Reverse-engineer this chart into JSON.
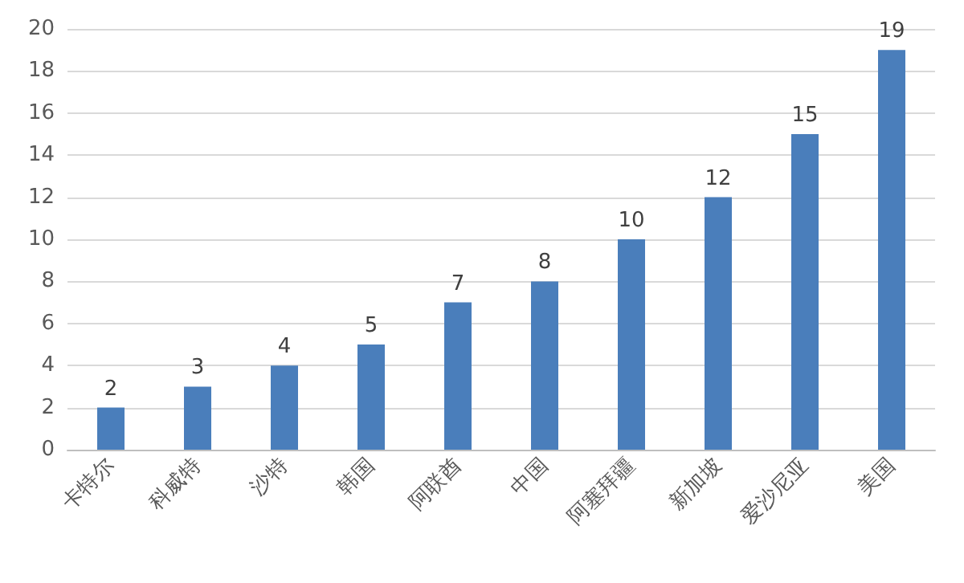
{
  "chart_data": {
    "type": "bar",
    "categories": [
      "卡特尔",
      "科威特",
      "沙特",
      "韩国",
      "阿联酋",
      "中国",
      "阿塞拜疆",
      "新加坡",
      "爱沙尼亚",
      "美国"
    ],
    "values": [
      2,
      3,
      4,
      5,
      7,
      8,
      10,
      12,
      15,
      19
    ],
    "color": "#4a7ebb",
    "ylim": [
      0,
      20
    ],
    "yticks": [
      0,
      2,
      4,
      6,
      8,
      10,
      12,
      14,
      16,
      18,
      20
    ],
    "grid": "y",
    "data_labels": true
  }
}
